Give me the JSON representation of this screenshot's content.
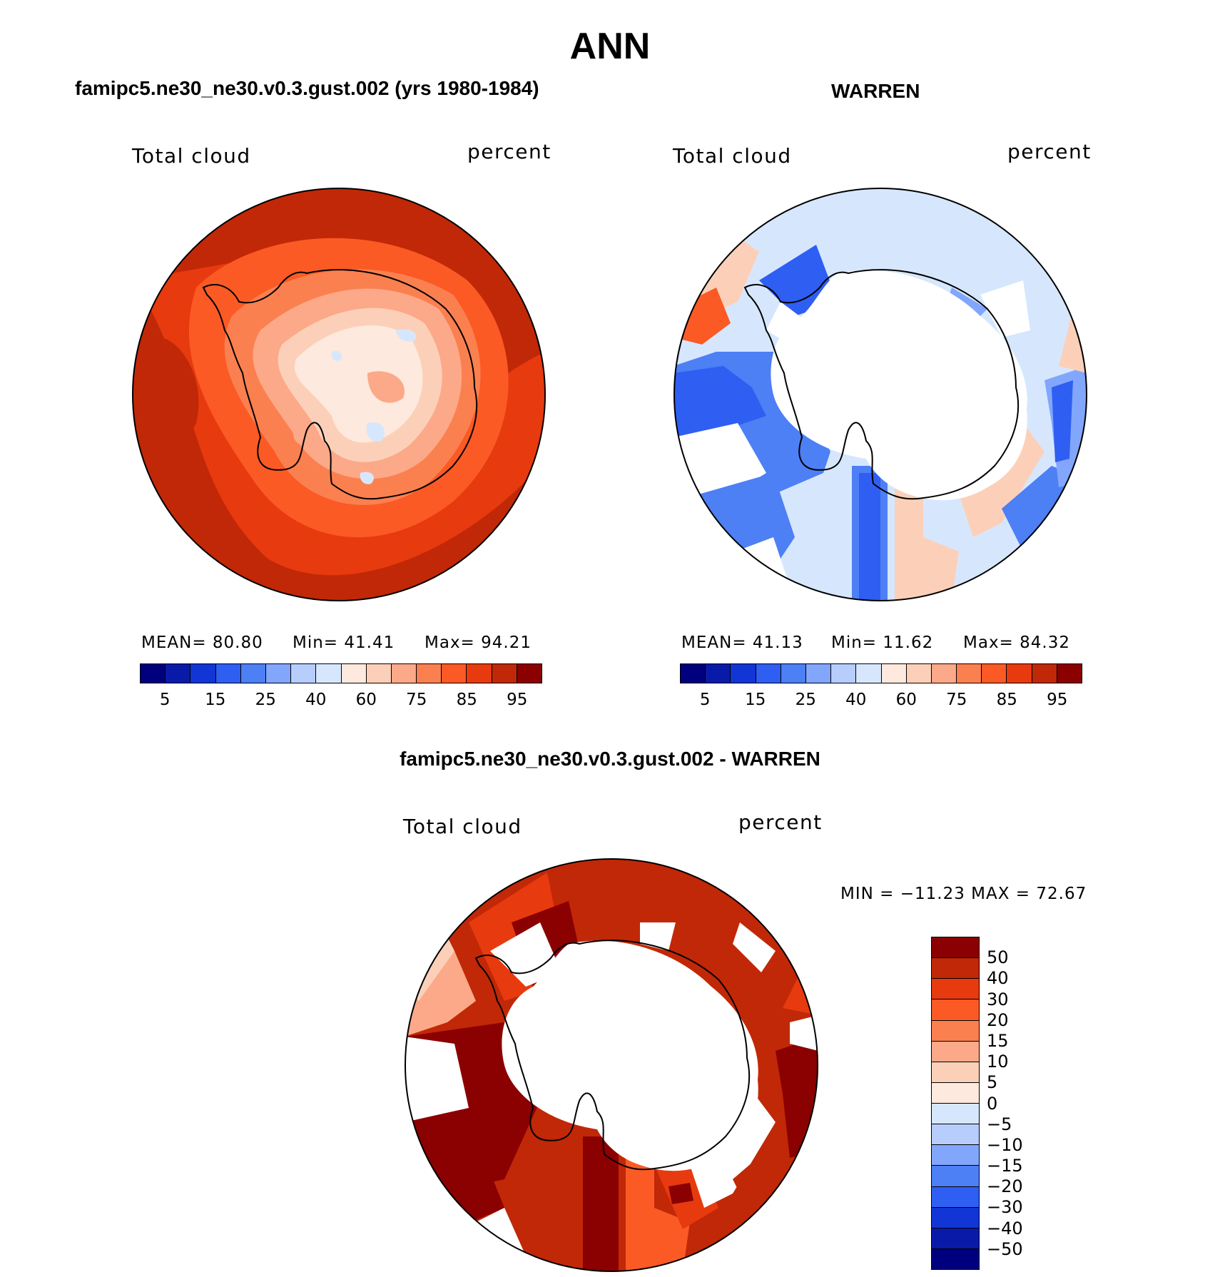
{
  "title": "ANN",
  "panels": [
    {
      "title": "famipc5.ne30_ne30.v0.3.gust.002 (yrs 1980-1984)",
      "var_label": "Total cloud",
      "units": "percent",
      "stats": {
        "mean": "MEAN=   80.80",
        "min": "Min=   41.41",
        "max": "Max=   94.21"
      },
      "ticks": [
        "5",
        "15",
        "25",
        "40",
        "60",
        "75",
        "85",
        "95"
      ]
    },
    {
      "title": "WARREN",
      "var_label": "Total cloud",
      "units": "percent",
      "stats": {
        "mean": "MEAN=   41.13",
        "min": "Min=   11.62",
        "max": "Max=   84.32"
      },
      "ticks": [
        "5",
        "15",
        "25",
        "40",
        "60",
        "75",
        "85",
        "95"
      ]
    }
  ],
  "diff": {
    "title": "famipc5.ne30_ne30.v0.3.gust.002 - WARREN",
    "var_label": "Total cloud",
    "units": "percent",
    "minmax": "MIN = −11.23 MAX =   72.67",
    "ticks": [
      "50",
      "40",
      "30",
      "20",
      "15",
      "10",
      "5",
      "0",
      "−5",
      "−10",
      "−15",
      "−20",
      "−30",
      "−40",
      "−50"
    ]
  },
  "colors": {
    "abs_scale": [
      "#00007f",
      "#0a1aa8",
      "#1235d6",
      "#2f5ef2",
      "#4d7ff5",
      "#82a6fb",
      "#b7cdfc",
      "#d6e7fd",
      "#fde9dd",
      "#fcd0b8",
      "#fca989",
      "#fb8050",
      "#fb5a25",
      "#e83a0f",
      "#c12807",
      "#8b0000"
    ],
    "diff_scale": [
      "#8b0000",
      "#c12807",
      "#e83a0f",
      "#fb5a25",
      "#fb8050",
      "#fca989",
      "#fcd0b8",
      "#fde9dd",
      "#d6e7fd",
      "#b7cdfc",
      "#82a6fb",
      "#4d7ff5",
      "#2f5ef2",
      "#1235d6",
      "#0a1aa8",
      "#00007f"
    ]
  }
}
